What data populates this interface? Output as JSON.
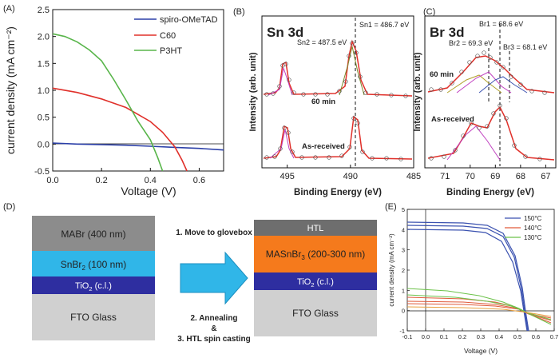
{
  "panels": {
    "A": {
      "letter": "(A)"
    },
    "B": {
      "letter": "(B)"
    },
    "C": {
      "letter": "(C)"
    },
    "D": {
      "letter": "(D)"
    },
    "E": {
      "letter": "(E)"
    }
  },
  "chart_data": [
    {
      "type": "line",
      "panel": "A",
      "title": "",
      "xlabel": "Voltage (V)",
      "ylabel": "current density (mA cm⁻²)",
      "xlim": [
        0.0,
        0.7
      ],
      "ylim": [
        -0.5,
        2.5
      ],
      "x_ticks": [
        "0.0",
        "0.2",
        "0.4",
        "0.6"
      ],
      "y_ticks": [
        "-0.5",
        "0.0",
        "0.5",
        "1.0",
        "1.5",
        "2.0",
        "2.5"
      ],
      "legend_position": "top-right",
      "series": [
        {
          "name": "spiro-OMeTAD",
          "color": "#2b3fa8",
          "x": [
            0,
            0.1,
            0.2,
            0.3,
            0.4,
            0.5,
            0.6,
            0.7
          ],
          "y": [
            0.02,
            0.0,
            -0.01,
            -0.02,
            -0.04,
            -0.06,
            -0.08,
            -0.11
          ]
        },
        {
          "name": "C60",
          "color": "#e0302a",
          "x": [
            0,
            0.1,
            0.2,
            0.3,
            0.4,
            0.45,
            0.5,
            0.53,
            0.55
          ],
          "y": [
            1.04,
            0.96,
            0.84,
            0.68,
            0.42,
            0.22,
            -0.05,
            -0.3,
            -0.5
          ]
        },
        {
          "name": "P3HT",
          "color": "#58b54a",
          "x": [
            0,
            0.05,
            0.1,
            0.15,
            0.2,
            0.25,
            0.3,
            0.35,
            0.4,
            0.43,
            0.45
          ],
          "y": [
            2.05,
            2.0,
            1.9,
            1.75,
            1.55,
            1.2,
            0.82,
            0.42,
            0.08,
            -0.25,
            -0.5
          ]
        }
      ]
    },
    {
      "type": "scatter",
      "panel": "B",
      "title": "Sn 3d",
      "xlabel": "Binding Energy (eV)",
      "ylabel": "Intensity (arb. unit)",
      "xlim": [
        497,
        485
      ],
      "x_ticks": [
        "495",
        "490",
        "485"
      ],
      "annotations": [
        "Sn1 = 486.7 eV",
        "Sn2 = 487.5 eV",
        "60 min",
        "As-received"
      ]
    },
    {
      "type": "scatter",
      "panel": "C",
      "title": "Br 3d",
      "xlabel": "Binding Energy (eV)",
      "ylabel": "Intensity (arb. unit)",
      "xlim": [
        71.8,
        66.6
      ],
      "x_ticks": [
        "71",
        "70",
        "69",
        "68",
        "67"
      ],
      "annotations": [
        "Br1 = 68.6 eV",
        "Br2 = 69.3 eV",
        "Br3 = 68.1 eV",
        "60 min",
        "As-received"
      ]
    },
    {
      "type": "line",
      "panel": "E",
      "title": "",
      "xlabel": "Voltage (V)",
      "ylabel": "current density (mA cm⁻²)",
      "xlim": [
        -0.1,
        0.7
      ],
      "ylim": [
        -1,
        5
      ],
      "x_ticks": [
        "-0.1",
        "0.0",
        "0.1",
        "0.2",
        "0.3",
        "0.4",
        "0.5",
        "0.6",
        "0.7"
      ],
      "y_ticks": [
        "-1",
        "0",
        "1",
        "2",
        "3",
        "4",
        "5"
      ],
      "legend_position": "top-right",
      "series": [
        {
          "name": "150°C",
          "color": "#3b52b0"
        },
        {
          "name": "140°C",
          "color": "#e05a3a"
        },
        {
          "name": "130°C",
          "color": "#6cc24a"
        }
      ]
    }
  ],
  "diagram": {
    "left_stack": {
      "mabr": "MABr (400 nm)",
      "snbr2_main": "SnBr",
      "snbr2_sub": "2",
      "snbr2_rest": " (100 nm)",
      "tio2_main": "TiO",
      "tio2_sub": "2",
      "tio2_rest": " (c.l.)",
      "fto": "FTO Glass"
    },
    "steps": {
      "step1": "1. Move to glovebox",
      "step2": "2. Annealing",
      "amp": "&",
      "step3": "3. HTL spin casting"
    },
    "right_stack": {
      "htl": "HTL",
      "masnbr3_main": "MASnBr",
      "masnbr3_sub": "3",
      "masnbr3_rest": " (200-300 nm)",
      "tio2_main": "TiO",
      "tio2_sub": "2",
      "tio2_rest": " (c.l.)",
      "fto": "FTO Glass"
    }
  }
}
